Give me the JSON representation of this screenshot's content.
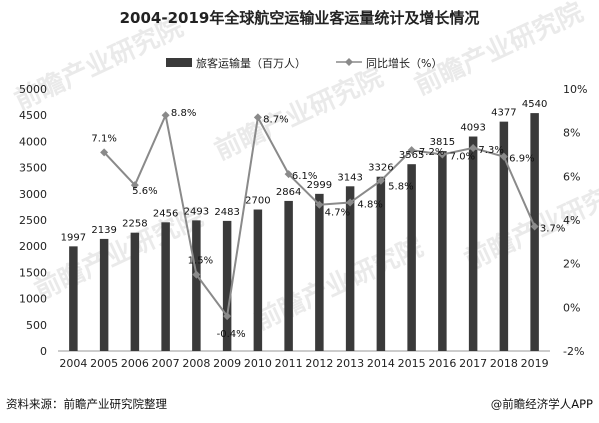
{
  "chart_data": {
    "type": "bar",
    "title": "2004-2019年全球航空运输业客运量统计及增长情况",
    "categories": [
      "2004",
      "2005",
      "2006",
      "2007",
      "2008",
      "2009",
      "2010",
      "2011",
      "2012",
      "2013",
      "2014",
      "2015",
      "2016",
      "2017",
      "2018",
      "2019"
    ],
    "series": [
      {
        "name": "旅客运输量（百万人）",
        "type": "bar",
        "axis": "left",
        "color": "#3a3a3a",
        "values": [
          1997,
          2139,
          2258,
          2456,
          2493,
          2483,
          2700,
          2864,
          2999,
          3143,
          3326,
          3565,
          3815,
          4093,
          4377,
          4540
        ]
      },
      {
        "name": "同比增长（%）",
        "type": "line",
        "axis": "right",
        "color": "#8a8a8a",
        "values": [
          null,
          7.1,
          5.6,
          8.8,
          1.5,
          -0.4,
          8.7,
          6.1,
          4.7,
          4.8,
          5.8,
          7.2,
          7.0,
          7.3,
          6.9,
          3.7
        ]
      }
    ],
    "y_left": {
      "ticks": [
        0,
        500,
        1000,
        1500,
        2000,
        2500,
        3000,
        3500,
        4000,
        4500,
        5000
      ],
      "ylim": [
        0,
        5000
      ]
    },
    "y_right": {
      "ticks": [
        "-2%",
        "0%",
        "2%",
        "4%",
        "6%",
        "8%",
        "10%"
      ],
      "ylim": [
        -2,
        10
      ]
    },
    "legend_position": "top",
    "grid": false
  },
  "footer": {
    "source": "资料来源：前瞻产业研究院整理",
    "brand": "@前瞻经济学人APP"
  },
  "watermark": {
    "text": "前瞻产业研究院"
  }
}
